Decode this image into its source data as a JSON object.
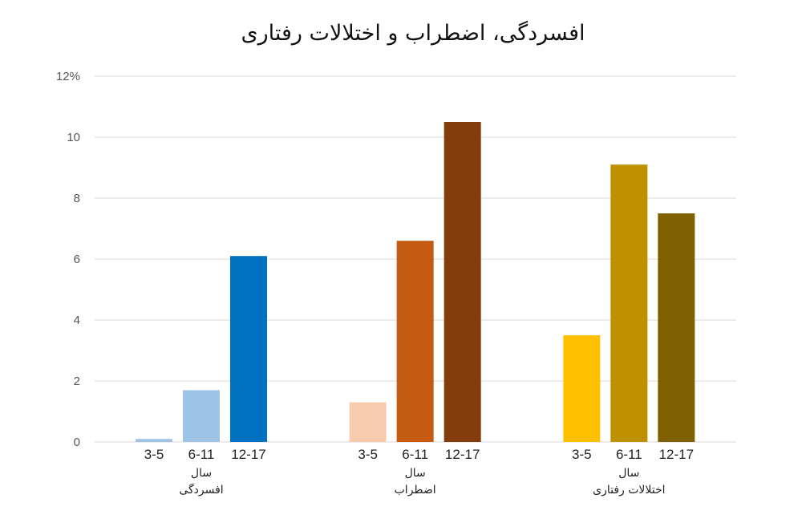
{
  "chart_data": {
    "type": "bar",
    "title": "افسردگی، اضطراب و اختلالات رفتاری",
    "ylim": [
      0,
      12
    ],
    "yticks": [
      "0",
      "2",
      "4",
      "6",
      "8",
      "10",
      "12%"
    ],
    "grid": true,
    "unit_label": "سال",
    "groups": [
      {
        "name": "افسردگی",
        "categories": [
          "3-5",
          "6-11",
          "12-17"
        ],
        "values": [
          0.1,
          1.7,
          6.1
        ],
        "colors": [
          "#9dc3e6",
          "#9dc3e6",
          "#0070c0"
        ]
      },
      {
        "name": "اضطراب",
        "categories": [
          "3-5",
          "6-11",
          "12-17"
        ],
        "values": [
          1.3,
          6.6,
          10.5
        ],
        "colors": [
          "#f8cbad",
          "#c55a11",
          "#843c0c"
        ]
      },
      {
        "name": "اختلالات رفتاری",
        "categories": [
          "3-5",
          "6-11",
          "12-17"
        ],
        "values": [
          3.5,
          9.1,
          7.5
        ],
        "colors": [
          "#ffc000",
          "#bf9000",
          "#7f6000"
        ]
      }
    ]
  }
}
